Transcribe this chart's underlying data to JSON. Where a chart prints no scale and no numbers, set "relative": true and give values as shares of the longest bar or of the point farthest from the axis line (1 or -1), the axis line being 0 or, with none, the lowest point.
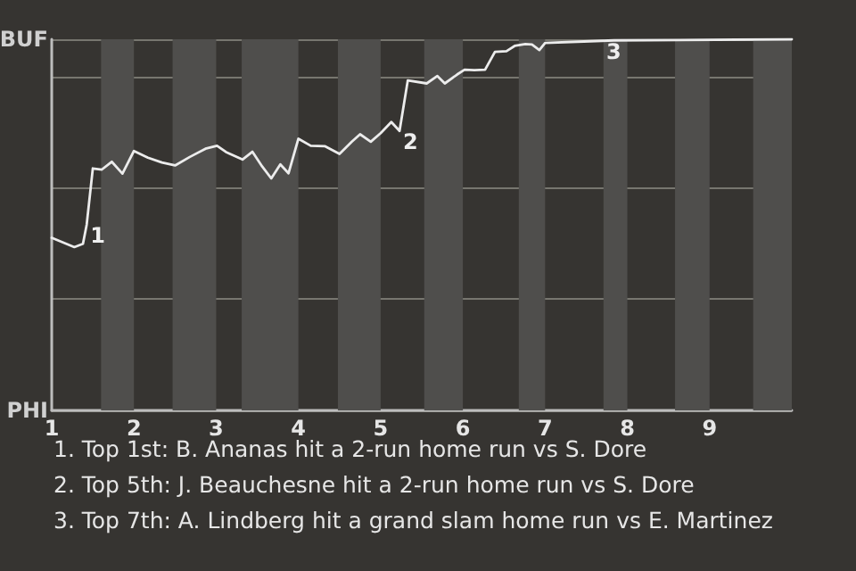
{
  "chart_data": {
    "type": "line",
    "relative": true,
    "x": [
      1,
      1.275,
      1.38,
      1.425,
      1.5,
      1.61,
      1.73,
      1.86,
      2,
      2.17,
      2.34,
      2.5,
      2.68,
      2.87,
      3.01,
      3.12,
      3.32,
      3.44,
      3.56,
      3.67,
      3.78,
      3.88,
      4,
      4.15,
      4.32,
      4.5,
      4.65,
      4.75,
      4.88,
      5,
      5.13,
      5.23,
      5.33,
      5.56,
      5.69,
      5.78,
      5.93,
      6.02,
      6.14,
      6.27,
      6.39,
      6.53,
      6.63,
      6.76,
      6.84,
      6.93,
      7,
      7.47,
      7.84,
      10
    ],
    "series": [
      {
        "color": "#ececec",
        "values": [
          0.465,
          0.44,
          0.449,
          0.5,
          0.652,
          0.649,
          0.67,
          0.638,
          0.699,
          0.681,
          0.668,
          0.66,
          0.683,
          0.705,
          0.713,
          0.696,
          0.676,
          0.697,
          0.657,
          0.625,
          0.663,
          0.639,
          0.732,
          0.713,
          0.712,
          0.691,
          0.724,
          0.744,
          0.724,
          0.747,
          0.777,
          0.753,
          0.889,
          0.881,
          0.901,
          0.881,
          0.905,
          0.918,
          0.917,
          0.918,
          0.966,
          0.968,
          0.982,
          0.987,
          0.986,
          0.971,
          0.99,
          0.994,
          0.997,
          1
        ]
      }
    ],
    "xlim": [
      1,
      10
    ],
    "xticks": [
      1,
      2,
      3,
      4,
      5,
      6,
      7,
      8,
      9
    ],
    "grid": "y",
    "marker": "none",
    "line_style": "solid",
    "bands": [
      {
        "axis": "x",
        "from": 1.6,
        "to": 2,
        "color": "#4f4e4c"
      },
      {
        "axis": "x",
        "from": 2.47,
        "to": 3,
        "color": "#4f4e4c"
      },
      {
        "axis": "x",
        "from": 3.31,
        "to": 4,
        "color": "#4f4e4c"
      },
      {
        "axis": "x",
        "from": 4.48,
        "to": 5,
        "color": "#4f4e4c"
      },
      {
        "axis": "x",
        "from": 5.53,
        "to": 6,
        "color": "#4f4e4c"
      },
      {
        "axis": "x",
        "from": 6.68,
        "to": 7,
        "color": "#4f4e4c"
      },
      {
        "axis": "x",
        "from": 7.71,
        "to": 8,
        "color": "#4f4e4c"
      },
      {
        "axis": "x",
        "from": 8.58,
        "to": 9,
        "color": "#4f4e4c"
      },
      {
        "axis": "x",
        "from": 9.53,
        "to": 10,
        "color": "#4f4e4c"
      }
    ],
    "annotations": [
      "BUF",
      "PHI",
      {
        "text": "1",
        "x": 1.425,
        "y": 0.5
      },
      {
        "text": "2",
        "x": 5.23,
        "y": 0.753
      },
      {
        "text": "3",
        "x": 7.7,
        "y": 0.995
      },
      "1. Top 1st: B. Ananas hit a 2-run home run vs S. Dore",
      "2. Top 5th: J. Beauchesne hit a 2-run home run vs S. Dore",
      "3. Top 7th: A. Lindberg hit a grand slam home run vs E. Martinez"
    ]
  }
}
